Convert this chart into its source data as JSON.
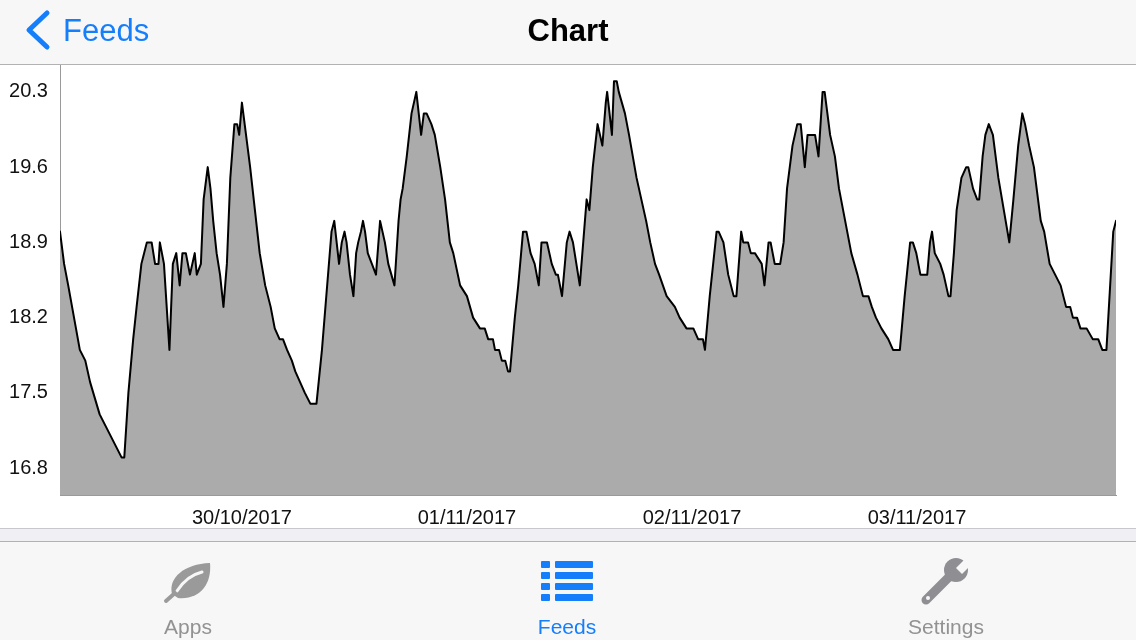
{
  "chart_data": {
    "type": "area",
    "title": "Chart",
    "annotations": [
      "Feeds",
      "Apps",
      "Feeds",
      "Settings"
    ],
    "x": [
      "2017-10-29T23:00",
      "2017-10-29T23:30",
      "2017-10-30T00:00",
      "2017-10-30T01:25",
      "2017-10-30T02:05",
      "2017-10-30T02:40",
      "2017-10-30T03:50",
      "2017-10-30T04:30",
      "2017-10-30T06:30",
      "2017-10-30T06:50",
      "2017-10-30T07:20",
      "2017-10-30T07:55",
      "2017-10-30T08:20",
      "2017-10-30T08:55",
      "2017-10-30T09:35",
      "2017-10-30T10:10",
      "2017-10-30T10:35",
      "2017-10-30T11:00",
      "2017-10-30T11:10",
      "2017-10-30T11:40",
      "2017-10-30T12:20",
      "2017-10-30T12:45",
      "2017-10-30T13:10",
      "2017-10-30T13:35",
      "2017-10-30T13:55",
      "2017-10-30T14:20",
      "2017-10-30T14:50",
      "2017-10-30T15:25",
      "2017-10-30T15:40",
      "2017-10-30T16:10",
      "2017-10-30T16:30",
      "2017-10-30T16:40",
      "2017-10-30T17:00",
      "2017-10-30T17:20",
      "2017-10-30T17:40",
      "2017-10-30T18:05",
      "2017-10-30T18:30",
      "2017-10-30T18:55",
      "2017-10-30T19:20",
      "2017-10-30T19:45",
      "2017-10-30T20:15",
      "2017-10-30T20:35",
      "2017-10-30T20:50",
      "2017-10-30T21:10",
      "2017-10-30T21:30",
      "2017-10-30T22:10",
      "2017-10-30T22:45",
      "2017-10-30T23:20",
      "2017-10-31T00:00",
      "2017-10-31T00:40",
      "2017-10-31T01:10",
      "2017-10-31T01:45",
      "2017-10-31T02:10",
      "2017-10-31T02:40",
      "2017-10-31T03:15",
      "2017-10-31T03:40",
      "2017-10-31T04:15",
      "2017-10-31T04:50",
      "2017-10-31T05:30",
      "2017-10-31T06:15",
      "2017-10-31T06:55",
      "2017-10-31T08:05",
      "2017-10-31T08:25",
      "2017-10-31T09:00",
      "2017-10-31T09:20",
      "2017-10-31T09:40",
      "2017-10-31T09:55",
      "2017-10-31T10:20",
      "2017-10-31T10:45",
      "2017-10-31T11:05",
      "2017-10-31T11:20",
      "2017-10-31T11:40",
      "2017-10-31T11:55",
      "2017-10-31T12:10",
      "2017-10-31T12:30",
      "2017-10-31T13:00",
      "2017-10-31T13:30",
      "2017-10-31T14:00",
      "2017-10-31T14:35",
      "2017-10-31T15:00",
      "2017-10-31T15:45",
      "2017-10-31T16:15",
      "2017-10-31T16:30",
      "2017-10-31T16:45",
      "2017-10-31T17:15",
      "2017-10-31T17:50",
      "2017-10-31T18:25",
      "2017-10-31T19:00",
      "2017-10-31T19:20",
      "2017-10-31T19:40",
      "2017-10-31T20:15",
      "2017-10-31T20:40",
      "2017-10-31T21:20",
      "2017-10-31T21:55",
      "2017-10-31T22:30",
      "2017-10-31T22:55",
      "2017-10-31T23:45",
      "2017-11-01T00:35",
      "2017-11-01T01:20",
      "2017-11-01T02:10",
      "2017-11-01T02:45",
      "2017-11-01T03:10",
      "2017-11-01T03:45",
      "2017-11-01T04:00",
      "2017-11-01T04:30",
      "2017-11-01T04:50",
      "2017-11-01T05:15",
      "2017-11-01T05:35",
      "2017-11-01T05:50",
      "2017-11-01T06:25",
      "2017-11-01T06:50",
      "2017-11-01T07:25",
      "2017-11-01T07:50",
      "2017-11-01T08:20",
      "2017-11-01T08:50",
      "2017-11-01T09:20",
      "2017-11-01T09:40",
      "2017-11-01T10:00",
      "2017-11-01T10:20",
      "2017-11-01T10:55",
      "2017-11-01T11:25",
      "2017-11-01T11:40",
      "2017-11-01T12:10",
      "2017-11-01T12:45",
      "2017-11-01T13:05",
      "2017-11-01T13:30",
      "2017-11-01T14:20",
      "2017-11-01T15:10",
      "2017-11-01T15:30",
      "2017-11-01T15:55",
      "2017-11-01T16:30",
      "2017-11-01T17:05",
      "2017-11-01T17:30",
      "2017-11-01T17:40",
      "2017-11-01T18:15",
      "2017-11-01T18:30",
      "2017-11-01T18:50",
      "2017-11-01T19:05",
      "2017-11-01T19:50",
      "2017-11-01T20:20",
      "2017-11-01T21:15",
      "2017-11-01T22:25",
      "2017-11-01T22:55",
      "2017-11-01T23:30",
      "2017-11-02T00:00",
      "2017-11-02T00:55",
      "2017-11-02T01:55",
      "2017-11-02T02:30",
      "2017-11-02T03:20",
      "2017-11-02T04:10",
      "2017-11-02T04:45",
      "2017-11-02T05:20",
      "2017-11-02T05:35",
      "2017-11-02T06:10",
      "2017-11-02T07:00",
      "2017-11-02T07:15",
      "2017-11-02T07:50",
      "2017-11-02T08:25",
      "2017-11-02T09:05",
      "2017-11-02T09:25",
      "2017-11-02T10:00",
      "2017-11-02T10:15",
      "2017-11-02T10:50",
      "2017-11-02T11:10",
      "2017-11-02T11:40",
      "2017-11-02T12:30",
      "2017-11-02T12:50",
      "2017-11-02T13:20",
      "2017-11-02T13:35",
      "2017-11-02T14:05",
      "2017-11-02T14:45",
      "2017-11-02T15:10",
      "2017-11-02T15:35",
      "2017-11-02T16:15",
      "2017-11-02T16:50",
      "2017-11-02T17:15",
      "2017-11-02T17:45",
      "2017-11-02T18:05",
      "2017-11-02T18:20",
      "2017-11-02T18:40",
      "2017-11-02T19:00",
      "2017-11-02T19:25",
      "2017-11-02T19:55",
      "2017-11-02T20:10",
      "2017-11-02T20:50",
      "2017-11-02T21:25",
      "2017-11-02T21:55",
      "2017-11-02T22:40",
      "2017-11-02T23:25",
      "2017-11-03T00:10",
      "2017-11-03T00:50",
      "2017-11-03T01:30",
      "2017-11-03T01:55",
      "2017-11-03T02:25",
      "2017-11-03T03:05",
      "2017-11-03T03:55",
      "2017-11-03T04:30",
      "2017-11-03T05:20",
      "2017-11-03T05:55",
      "2017-11-03T06:35",
      "2017-11-03T06:55",
      "2017-11-03T07:20",
      "2017-11-03T07:50",
      "2017-11-03T08:40",
      "2017-11-03T09:00",
      "2017-11-03T09:15",
      "2017-11-03T09:35",
      "2017-11-03T10:15",
      "2017-11-03T10:40",
      "2017-11-03T11:15",
      "2017-11-03T11:30",
      "2017-11-03T11:55",
      "2017-11-03T12:15",
      "2017-11-03T12:50",
      "2017-11-03T13:25",
      "2017-11-03T13:40",
      "2017-11-03T14:15",
      "2017-11-03T14:45",
      "2017-11-03T15:00",
      "2017-11-03T15:25",
      "2017-11-03T15:45",
      "2017-11-03T16:10",
      "2017-11-03T16:40",
      "2017-11-03T17:20",
      "2017-11-03T18:00",
      "2017-11-03T18:40",
      "2017-11-03T19:10",
      "2017-11-03T19:45",
      "2017-11-03T20:15",
      "2017-11-03T20:35",
      "2017-11-03T21:05",
      "2017-11-03T21:40",
      "2017-11-03T22:30",
      "2017-11-03T22:55",
      "2017-11-03T23:35",
      "2017-11-04T00:15",
      "2017-11-04T00:55",
      "2017-11-04T01:35",
      "2017-11-04T02:05",
      "2017-11-04T02:25",
      "2017-11-04T02:55",
      "2017-11-04T03:20",
      "2017-11-04T04:05",
      "2017-11-04T04:50",
      "2017-11-04T05:30",
      "2017-11-04T06:00",
      "2017-11-04T06:30",
      "2017-11-04T07:20",
      "2017-11-04T07:40"
    ],
    "values": [
      19.0,
      18.7,
      18.5,
      17.9,
      17.8,
      17.6,
      17.3,
      17.2,
      16.9,
      16.9,
      17.5,
      18.0,
      18.3,
      18.7,
      18.9,
      18.9,
      18.7,
      18.7,
      18.9,
      18.7,
      17.9,
      18.7,
      18.8,
      18.5,
      18.8,
      18.8,
      18.6,
      18.8,
      18.6,
      18.7,
      19.3,
      19.4,
      19.6,
      19.4,
      19.1,
      18.8,
      18.6,
      18.3,
      18.7,
      19.5,
      20.0,
      20.0,
      19.9,
      20.2,
      20.0,
      19.6,
      19.2,
      18.8,
      18.5,
      18.3,
      18.1,
      18.0,
      18.0,
      17.9,
      17.8,
      17.7,
      17.6,
      17.5,
      17.4,
      17.4,
      17.9,
      19.0,
      19.1,
      18.7,
      18.9,
      19.0,
      18.9,
      18.6,
      18.4,
      18.8,
      18.9,
      19.0,
      19.1,
      19.0,
      18.8,
      18.7,
      18.6,
      19.1,
      18.9,
      18.7,
      18.5,
      19.1,
      19.3,
      19.4,
      19.7,
      20.1,
      20.3,
      19.9,
      20.1,
      20.1,
      20.0,
      19.9,
      19.6,
      19.3,
      18.9,
      18.8,
      18.5,
      18.4,
      18.2,
      18.1,
      18.1,
      18.0,
      18.0,
      17.9,
      17.9,
      17.8,
      17.8,
      17.7,
      17.7,
      18.2,
      18.5,
      19.0,
      19.0,
      18.8,
      18.7,
      18.5,
      18.9,
      18.9,
      18.9,
      18.7,
      18.6,
      18.6,
      18.4,
      18.9,
      19.0,
      18.9,
      18.5,
      19.3,
      19.2,
      19.6,
      20.0,
      19.8,
      20.2,
      20.3,
      19.9,
      20.4,
      20.4,
      20.3,
      20.1,
      19.9,
      19.5,
      19.1,
      18.9,
      18.7,
      18.6,
      18.4,
      18.3,
      18.2,
      18.1,
      18.1,
      18.0,
      18.0,
      17.9,
      18.4,
      19.0,
      19.0,
      18.9,
      18.6,
      18.4,
      18.4,
      19.0,
      18.9,
      18.9,
      18.8,
      18.8,
      18.7,
      18.5,
      18.9,
      18.9,
      18.7,
      18.7,
      18.9,
      19.4,
      19.8,
      20.0,
      20.0,
      19.6,
      19.9,
      19.9,
      19.9,
      19.9,
      19.7,
      20.3,
      20.3,
      19.9,
      19.7,
      19.4,
      19.1,
      18.8,
      18.6,
      18.4,
      18.4,
      18.3,
      18.2,
      18.1,
      18.0,
      17.9,
      17.9,
      18.4,
      18.9,
      18.9,
      18.8,
      18.6,
      18.6,
      18.9,
      19.0,
      18.8,
      18.7,
      18.6,
      18.4,
      18.4,
      18.8,
      19.2,
      19.5,
      19.6,
      19.6,
      19.4,
      19.3,
      19.3,
      19.7,
      19.9,
      20.0,
      19.9,
      19.5,
      19.2,
      18.9,
      19.3,
      19.8,
      20.1,
      20.0,
      19.8,
      19.6,
      19.1,
      19.0,
      18.7,
      18.6,
      18.5,
      18.3,
      18.3,
      18.2,
      18.2,
      18.1,
      18.1,
      18.0,
      18.0,
      17.9,
      17.9,
      19.0,
      19.1
    ],
    "color": "#ababab",
    "line_style": "solid",
    "xlim": [
      "2017-10-29T23:00",
      "2017-11-04T07:40"
    ],
    "xticks": [
      {
        "value": "2017-10-30T21:10",
        "label": "30/10/2017"
      },
      {
        "value": "2017-11-01T00:35",
        "label": "01/11/2017"
      },
      {
        "value": "2017-11-02T04:00",
        "label": "02/11/2017"
      },
      {
        "value": "2017-11-03T07:25",
        "label": "03/11/2017"
      }
    ],
    "ylim": [
      16.55,
      20.55
    ],
    "yticks": [
      16.8,
      17.5,
      18.2,
      18.9,
      19.6,
      20.3
    ]
  }
}
